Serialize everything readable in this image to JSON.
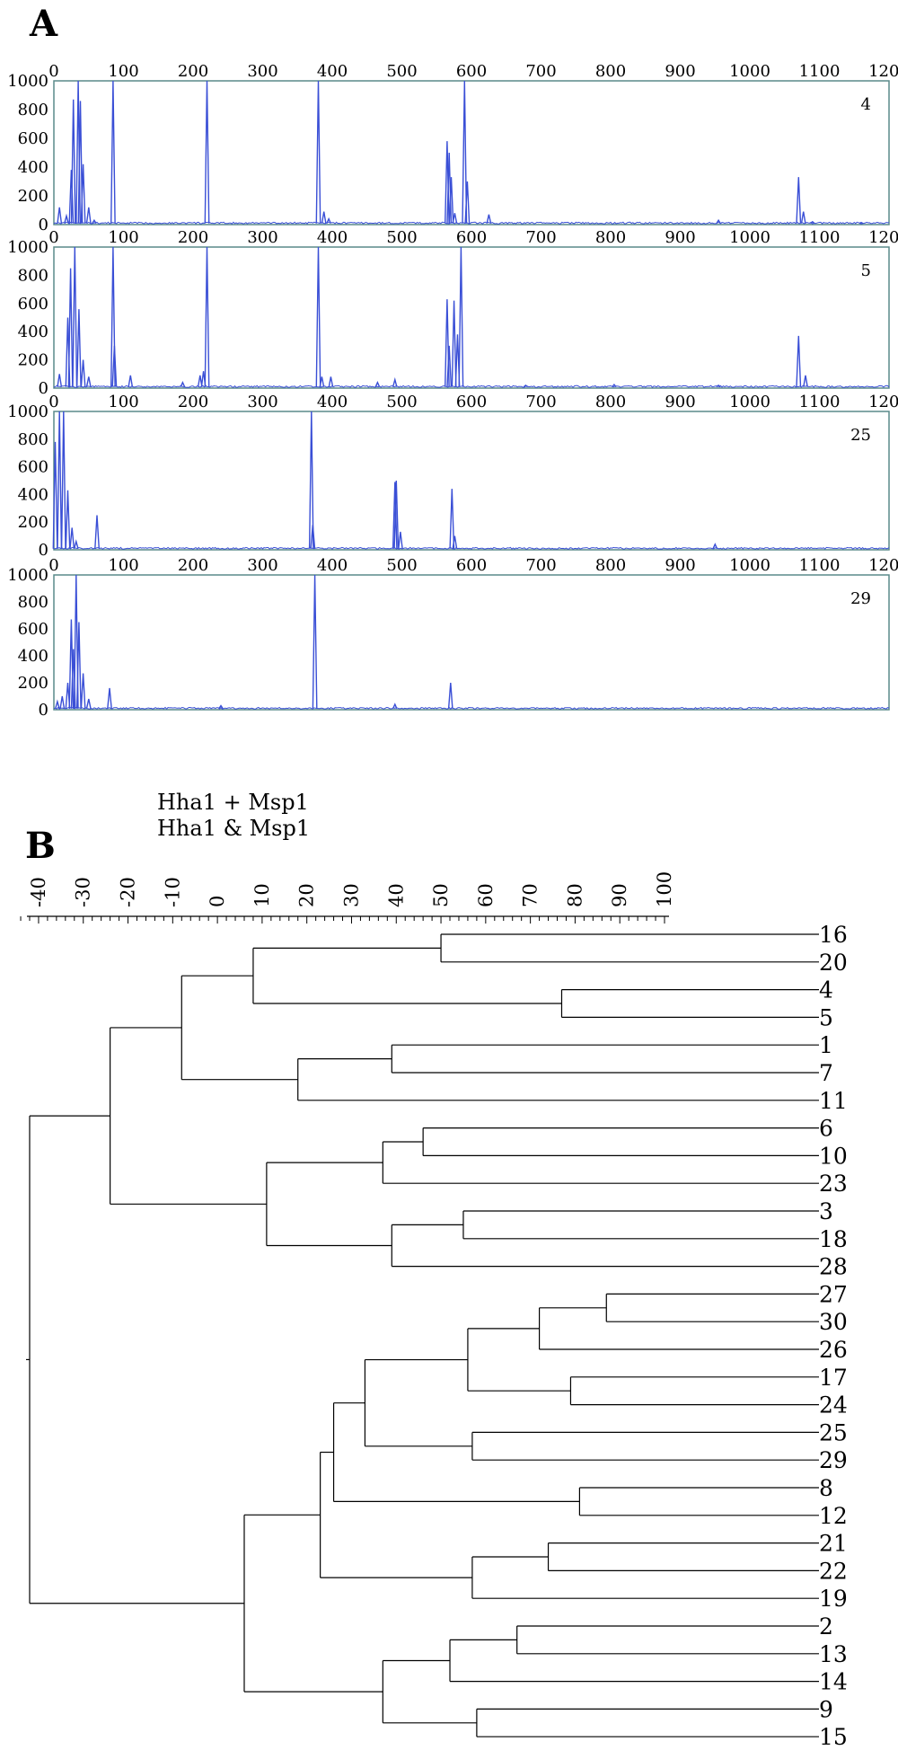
{
  "colors": {
    "trace": "#3a4fd6",
    "frame": "#5a8a8a",
    "dendrogram": "#000000",
    "text": "#000000"
  },
  "panel_a": {
    "label": "A"
  },
  "panel_b": {
    "label": "B",
    "legend_line1": "Hha1 + Msp1",
    "legend_line2": "Hha1 & Msp1"
  },
  "chart_data": [
    {
      "type": "line",
      "title": "",
      "xlabel": "",
      "ylabel": "",
      "xlim": [
        0,
        1200
      ],
      "ylim": [
        0,
        1000
      ],
      "x_ticks": [
        0,
        100,
        200,
        300,
        400,
        500,
        600,
        700,
        800,
        900,
        1000,
        1100,
        1200
      ],
      "y_ticks": [
        0,
        200,
        400,
        600,
        800,
        1000
      ],
      "series": [
        {
          "name": "4",
          "peaks": [
            [
              8,
              120
            ],
            [
              18,
              60
            ],
            [
              25,
              380
            ],
            [
              28,
              870
            ],
            [
              35,
              1000
            ],
            [
              38,
              860
            ],
            [
              42,
              420
            ],
            [
              50,
              120
            ],
            [
              58,
              30
            ],
            [
              85,
              1000
            ],
            [
              220,
              1000
            ],
            [
              380,
              1000
            ],
            [
              388,
              90
            ],
            [
              395,
              40
            ],
            [
              565,
              580
            ],
            [
              568,
              500
            ],
            [
              571,
              330
            ],
            [
              576,
              80
            ],
            [
              590,
              1000
            ],
            [
              594,
              300
            ],
            [
              625,
              70
            ],
            [
              955,
              30
            ],
            [
              1070,
              330
            ],
            [
              1077,
              90
            ],
            [
              1090,
              20
            ],
            [
              1160,
              15
            ]
          ]
        }
      ]
    },
    {
      "type": "line",
      "title": "",
      "xlabel": "",
      "ylabel": "",
      "xlim": [
        0,
        1200
      ],
      "ylim": [
        0,
        1000
      ],
      "x_ticks": [
        0,
        100,
        200,
        300,
        400,
        500,
        600,
        700,
        800,
        900,
        1000,
        1100,
        1200
      ],
      "y_ticks": [
        0,
        200,
        400,
        600,
        800,
        1000
      ],
      "series": [
        {
          "name": "5",
          "peaks": [
            [
              8,
              100
            ],
            [
              20,
              500
            ],
            [
              24,
              850
            ],
            [
              30,
              1000
            ],
            [
              36,
              560
            ],
            [
              42,
              200
            ],
            [
              50,
              80
            ],
            [
              85,
              1000
            ],
            [
              87,
              300
            ],
            [
              110,
              90
            ],
            [
              185,
              40
            ],
            [
              210,
              90
            ],
            [
              215,
              120
            ],
            [
              220,
              1000
            ],
            [
              380,
              1000
            ],
            [
              385,
              80
            ],
            [
              398,
              80
            ],
            [
              465,
              40
            ],
            [
              490,
              60
            ],
            [
              565,
              630
            ],
            [
              568,
              300
            ],
            [
              575,
              620
            ],
            [
              580,
              380
            ],
            [
              585,
              1000
            ],
            [
              678,
              20
            ],
            [
              805,
              25
            ],
            [
              955,
              20
            ],
            [
              1070,
              370
            ],
            [
              1080,
              90
            ]
          ]
        }
      ]
    },
    {
      "type": "line",
      "title": "",
      "xlabel": "",
      "ylabel": "",
      "xlim": [
        0,
        1200
      ],
      "ylim": [
        0,
        1000
      ],
      "x_ticks": [
        0,
        100,
        200,
        300,
        400,
        500,
        600,
        700,
        800,
        900,
        1000,
        1100,
        1200
      ],
      "y_ticks": [
        0,
        200,
        400,
        600,
        800,
        1000
      ],
      "series": [
        {
          "name": "25",
          "peaks": [
            [
              2,
              780
            ],
            [
              8,
              1000
            ],
            [
              14,
              1000
            ],
            [
              20,
              430
            ],
            [
              26,
              160
            ],
            [
              32,
              60
            ],
            [
              62,
              250
            ],
            [
              370,
              1000
            ],
            [
              372,
              180
            ],
            [
              490,
              490
            ],
            [
              492,
              500
            ],
            [
              498,
              130
            ],
            [
              572,
              440
            ],
            [
              576,
              100
            ],
            [
              950,
              40
            ]
          ]
        }
      ]
    },
    {
      "type": "line",
      "title": "",
      "xlabel": "",
      "ylabel": "",
      "xlim": [
        0,
        1200
      ],
      "ylim": [
        0,
        1000
      ],
      "x_ticks": [
        0,
        100,
        200,
        300,
        400,
        500,
        600,
        700,
        800,
        900,
        1000,
        1100,
        1200
      ],
      "y_ticks": [
        0,
        200,
        400,
        600,
        800,
        1000
      ],
      "series": [
        {
          "name": "29",
          "peaks": [
            [
              5,
              60
            ],
            [
              12,
              100
            ],
            [
              20,
              200
            ],
            [
              25,
              670
            ],
            [
              28,
              450
            ],
            [
              32,
              1000
            ],
            [
              36,
              650
            ],
            [
              42,
              270
            ],
            [
              50,
              80
            ],
            [
              80,
              160
            ],
            [
              240,
              30
            ],
            [
              375,
              1000
            ],
            [
              490,
              40
            ],
            [
              570,
              200
            ]
          ]
        }
      ]
    },
    {
      "type": "dendrogram",
      "title": "",
      "xlabel": "",
      "ylabel": "",
      "xlim": [
        -40,
        100
      ],
      "x_ticks": [
        -40,
        -30,
        -20,
        -10,
        0,
        10,
        20,
        30,
        40,
        50,
        60,
        70,
        80,
        90,
        100
      ],
      "leaves": [
        "16",
        "20",
        "4",
        "5",
        "1",
        "7",
        "11",
        "6",
        "10",
        "23",
        "3",
        "18",
        "28",
        "27",
        "30",
        "26",
        "17",
        "24",
        "25",
        "29",
        "8",
        "12",
        "21",
        "22",
        "19",
        "2",
        "13",
        "14",
        "9",
        "15"
      ],
      "merges": [
        [
          "16",
          "20",
          50
        ],
        [
          "4",
          "5",
          77
        ],
        [
          "16+20",
          "4+5",
          8
        ],
        [
          "1",
          "7",
          39
        ],
        [
          "1+7",
          "11",
          18
        ],
        [
          "16+20+4+5",
          "1+7+11",
          -8
        ],
        [
          "6",
          "10",
          46
        ],
        [
          "6+10",
          "23",
          37
        ],
        [
          "3",
          "18",
          55
        ],
        [
          "3+18",
          "28",
          39
        ],
        [
          "6+10+23",
          "3+18+28",
          11
        ],
        [
          "A1",
          "A2",
          -24
        ],
        [
          "27",
          "30",
          87
        ],
        [
          "27+30",
          "26",
          72
        ],
        [
          "17",
          "24",
          79
        ],
        [
          "27+30+26",
          "17+24",
          56
        ],
        [
          "25",
          "29",
          57
        ],
        [
          "B1",
          "25+29",
          33
        ],
        [
          "8",
          "12",
          81
        ],
        [
          "B2",
          "8+12",
          26
        ],
        [
          "21",
          "22",
          74
        ],
        [
          "21+22",
          "19",
          57
        ],
        [
          "B3",
          "21+22+19",
          23
        ],
        [
          "2",
          "13",
          67
        ],
        [
          "2+13",
          "14",
          52
        ],
        [
          "9",
          "15",
          58
        ],
        [
          "2+13+14",
          "9+15",
          37
        ],
        [
          "B4",
          "C",
          6
        ],
        [
          "A",
          "B",
          -42
        ]
      ]
    }
  ]
}
